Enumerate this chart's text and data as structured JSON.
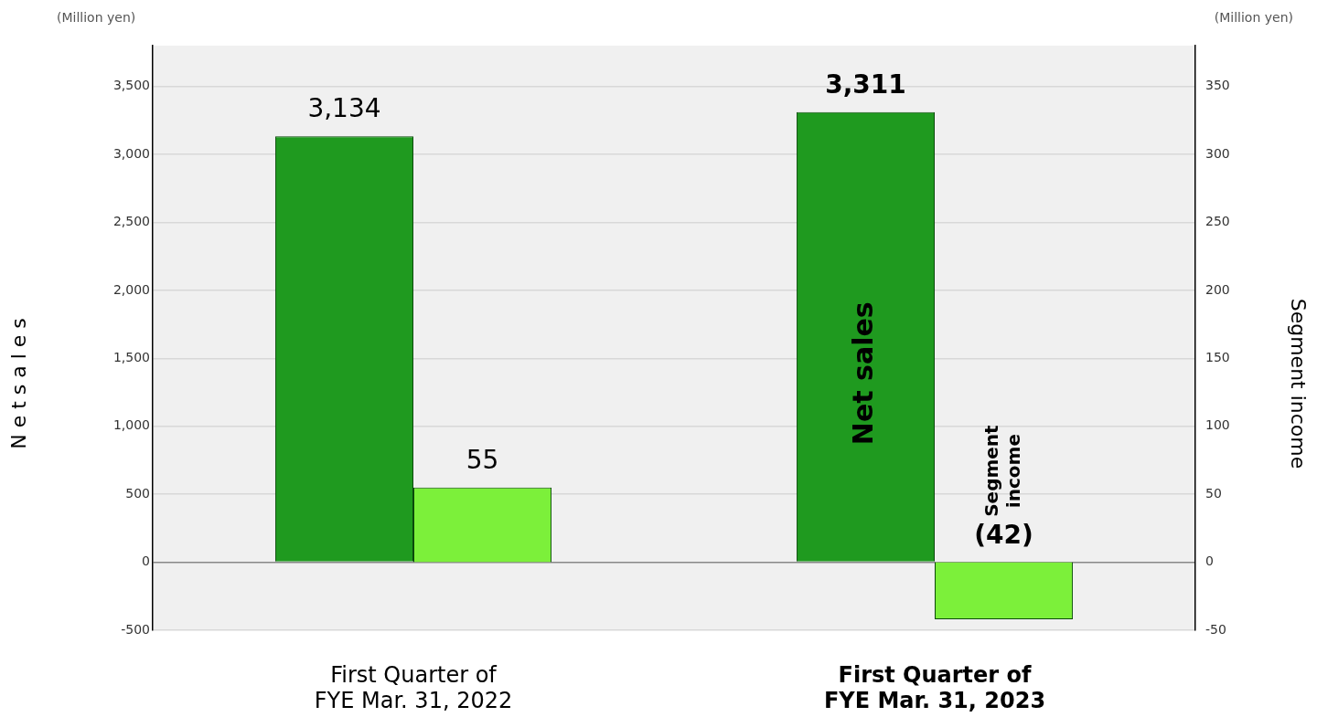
{
  "chart_data": {
    "type": "bar",
    "ylabel": "N e t s a l e s",
    "y2label": "Segment income",
    "annotations": [
      "(Million yen)",
      "(Million yen)"
    ],
    "categories": [
      "First Quarter of\nFYE Mar. 31, 2022",
      "First Quarter of\nFYE Mar. 31, 2023"
    ],
    "series": [
      {
        "name": "Net sales",
        "color": "#1f9a1f",
        "values": [
          3134,
          3311
        ],
        "value_labels": [
          "3,134",
          "3,311"
        ]
      },
      {
        "name": "Segment income",
        "color": "#7cf03a",
        "values": [
          55,
          -42
        ],
        "value_labels": [
          "55",
          "(42)"
        ],
        "axis": "y2"
      }
    ],
    "ylim": [
      -500,
      3800
    ],
    "yticks": [
      {
        "value": -500,
        "label": "-500"
      },
      0,
      {
        "value": 500,
        "label": "500"
      },
      {
        "value": 1000,
        "label": "1,000"
      },
      {
        "value": 1500,
        "label": "1,500"
      },
      {
        "value": 2000,
        "label": "2,000"
      },
      {
        "value": 2500,
        "label": "2,500"
      },
      {
        "value": 3000,
        "label": "3,000"
      },
      {
        "value": 3500,
        "label": "3,500"
      }
    ],
    "y2lim": [
      -50,
      380
    ],
    "y2ticks": [
      -50,
      0,
      50,
      100,
      150,
      200,
      250,
      300,
      350
    ],
    "grid": "y",
    "legend": false
  }
}
